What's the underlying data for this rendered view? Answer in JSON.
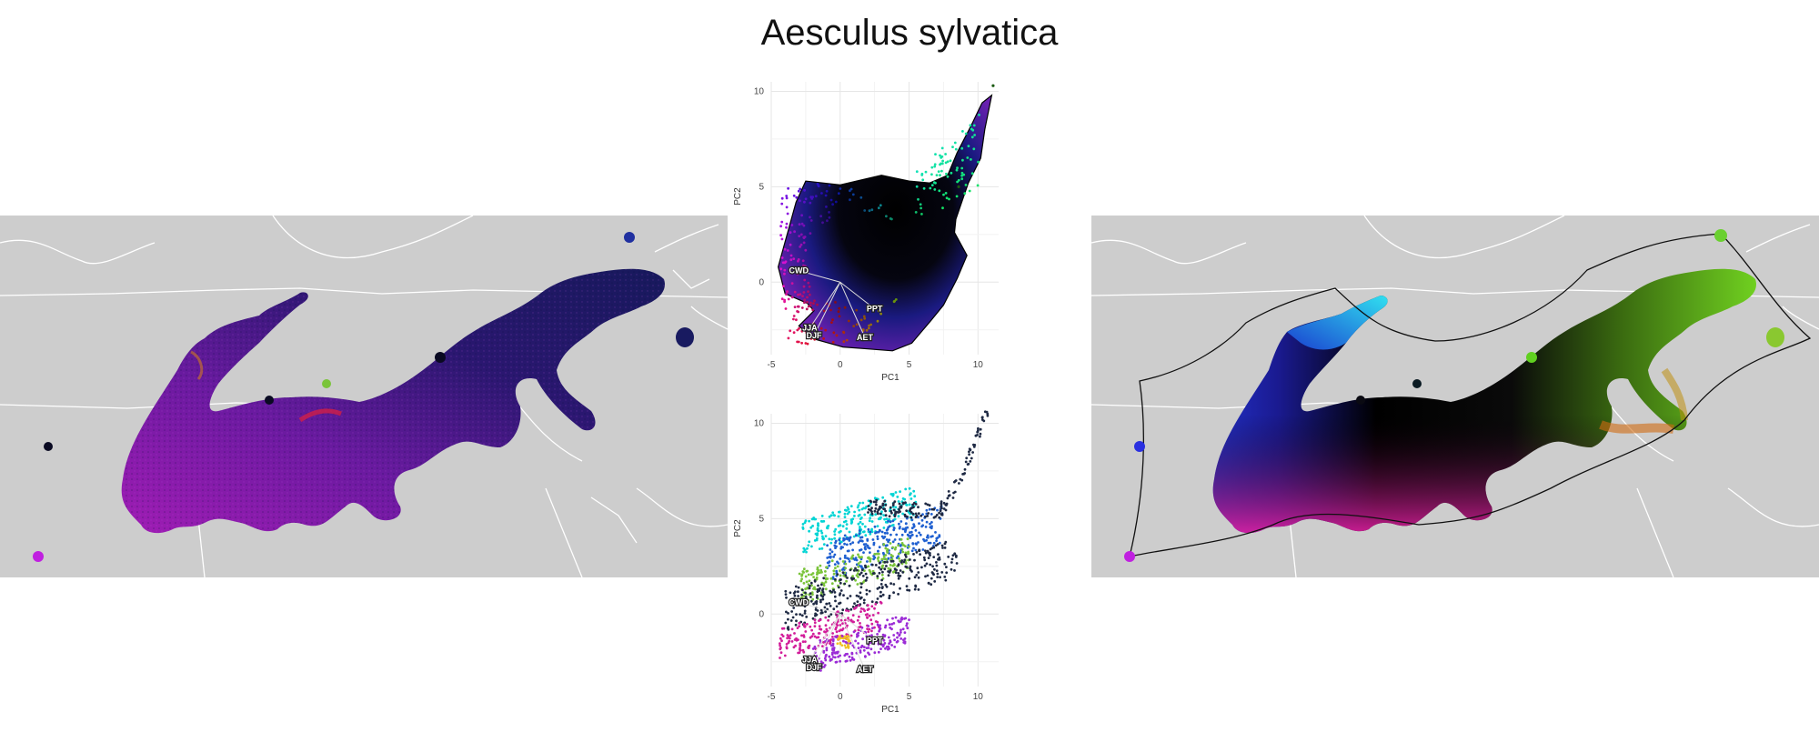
{
  "title": "Aesculus sylvatica",
  "chart_data": [
    {
      "type": "scatter",
      "panel": "top",
      "xlabel": "PC1",
      "ylabel": "PC2",
      "xlim": [
        -5,
        11.5
      ],
      "ylim": [
        -3.8,
        10.5
      ],
      "xticks": [
        -5,
        0,
        5,
        10
      ],
      "yticks": [
        0,
        5,
        10
      ],
      "grid": true,
      "loadings": [
        {
          "label": "CWD",
          "x": -3.0,
          "y": 0.6
        },
        {
          "label": "PPT",
          "x": 2.5,
          "y": -1.4
        },
        {
          "label": "AET",
          "x": 1.8,
          "y": -2.9
        },
        {
          "label": "DJF",
          "x": -1.9,
          "y": -2.8
        },
        {
          "label": "JJA",
          "x": -2.2,
          "y": -2.4
        }
      ],
      "hull": [
        [
          -4.5,
          0.8
        ],
        [
          -3.2,
          4.2
        ],
        [
          -2.5,
          5.3
        ],
        [
          0,
          5.1
        ],
        [
          1.8,
          5.4
        ],
        [
          3,
          5.6
        ],
        [
          5,
          5.3
        ],
        [
          6.5,
          5.2
        ],
        [
          7.8,
          5.6
        ],
        [
          8.5,
          6.8
        ],
        [
          9.5,
          8.2
        ],
        [
          10.3,
          9.4
        ],
        [
          11,
          9.8
        ],
        [
          10.5,
          8
        ],
        [
          10.2,
          6.5
        ],
        [
          9.3,
          5.2
        ],
        [
          8.4,
          3.3
        ],
        [
          8.3,
          2.6
        ],
        [
          9.2,
          1.4
        ],
        [
          8.5,
          0.2
        ],
        [
          7.5,
          -1.2
        ],
        [
          6.6,
          -2.0
        ],
        [
          5.2,
          -3.2
        ],
        [
          3.8,
          -3.6
        ],
        [
          2.0,
          -3.5
        ],
        [
          0.2,
          -3.4
        ],
        [
          -1.8,
          -3.0
        ],
        [
          -3.0,
          -2.3
        ],
        [
          -1.9,
          -1.5
        ],
        [
          -2.4,
          -1.1
        ],
        [
          -4.0,
          -0.6
        ],
        [
          -4.5,
          0.8
        ]
      ],
      "outliers": [
        [
          11.1,
          10.3
        ],
        [
          8.6,
          5.0
        ]
      ],
      "mapping": "point color encodes position in PC1/PC2 space"
    },
    {
      "type": "scatter",
      "panel": "bottom",
      "xlabel": "PC1",
      "ylabel": "PC2",
      "xlim": [
        -5,
        11.5
      ],
      "ylim": [
        -3.8,
        10.5
      ],
      "xticks": [
        -5,
        0,
        5,
        10
      ],
      "yticks": [
        0,
        5,
        10
      ],
      "grid": true,
      "loadings": [
        {
          "label": "CWD",
          "x": -3.0,
          "y": 0.6
        },
        {
          "label": "PPT",
          "x": 2.5,
          "y": -1.4
        },
        {
          "label": "AET",
          "x": 1.8,
          "y": -2.9
        },
        {
          "label": "DJF",
          "x": -1.9,
          "y": -2.8
        },
        {
          "label": "JJA",
          "x": -2.2,
          "y": -2.4
        }
      ],
      "series_colors": [
        "#00d4d4",
        "#1e5fd0",
        "#7ac43a",
        "#1f2a44",
        "#d21e9a",
        "#9b2bd6",
        "#f0c020"
      ]
    }
  ],
  "maps": {
    "background": "#cdcdcd",
    "border_color": "#ffffff",
    "left_palette": [
      "#3a1780",
      "#24156a",
      "#7a1a9a",
      "#a61db0",
      "#151a60"
    ],
    "right_palette": [
      "#1e3cc8",
      "#2ad0e0",
      "#000000",
      "#7ad020",
      "#e0a020",
      "#e02080"
    ]
  }
}
